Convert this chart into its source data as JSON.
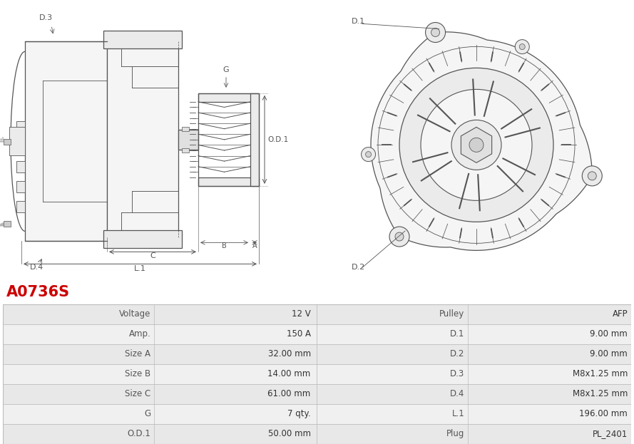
{
  "title": "A0736S",
  "title_color": "#cc0000",
  "image_bg": "#ffffff",
  "draw_color": "#555555",
  "table": {
    "left_labels": [
      "Voltage",
      "Amp.",
      "Size A",
      "Size B",
      "Size C",
      "G",
      "O.D.1"
    ],
    "left_values": [
      "12 V",
      "150 A",
      "32.00 mm",
      "14.00 mm",
      "61.00 mm",
      "7 qty.",
      "50.00 mm"
    ],
    "right_labels": [
      "Pulley",
      "D.1",
      "D.2",
      "D.3",
      "D.4",
      "L.1",
      "Plug"
    ],
    "right_values": [
      "AFP",
      "9.00 mm",
      "9.00 mm",
      "M8x1.25 mm",
      "M8x1.25 mm",
      "196.00 mm",
      "PL_2401"
    ]
  },
  "row_colors": [
    "#e8e8e8",
    "#f0f0f0"
  ],
  "border_color": "#bbbbbb",
  "text_color": "#333333",
  "label_color": "#555555"
}
